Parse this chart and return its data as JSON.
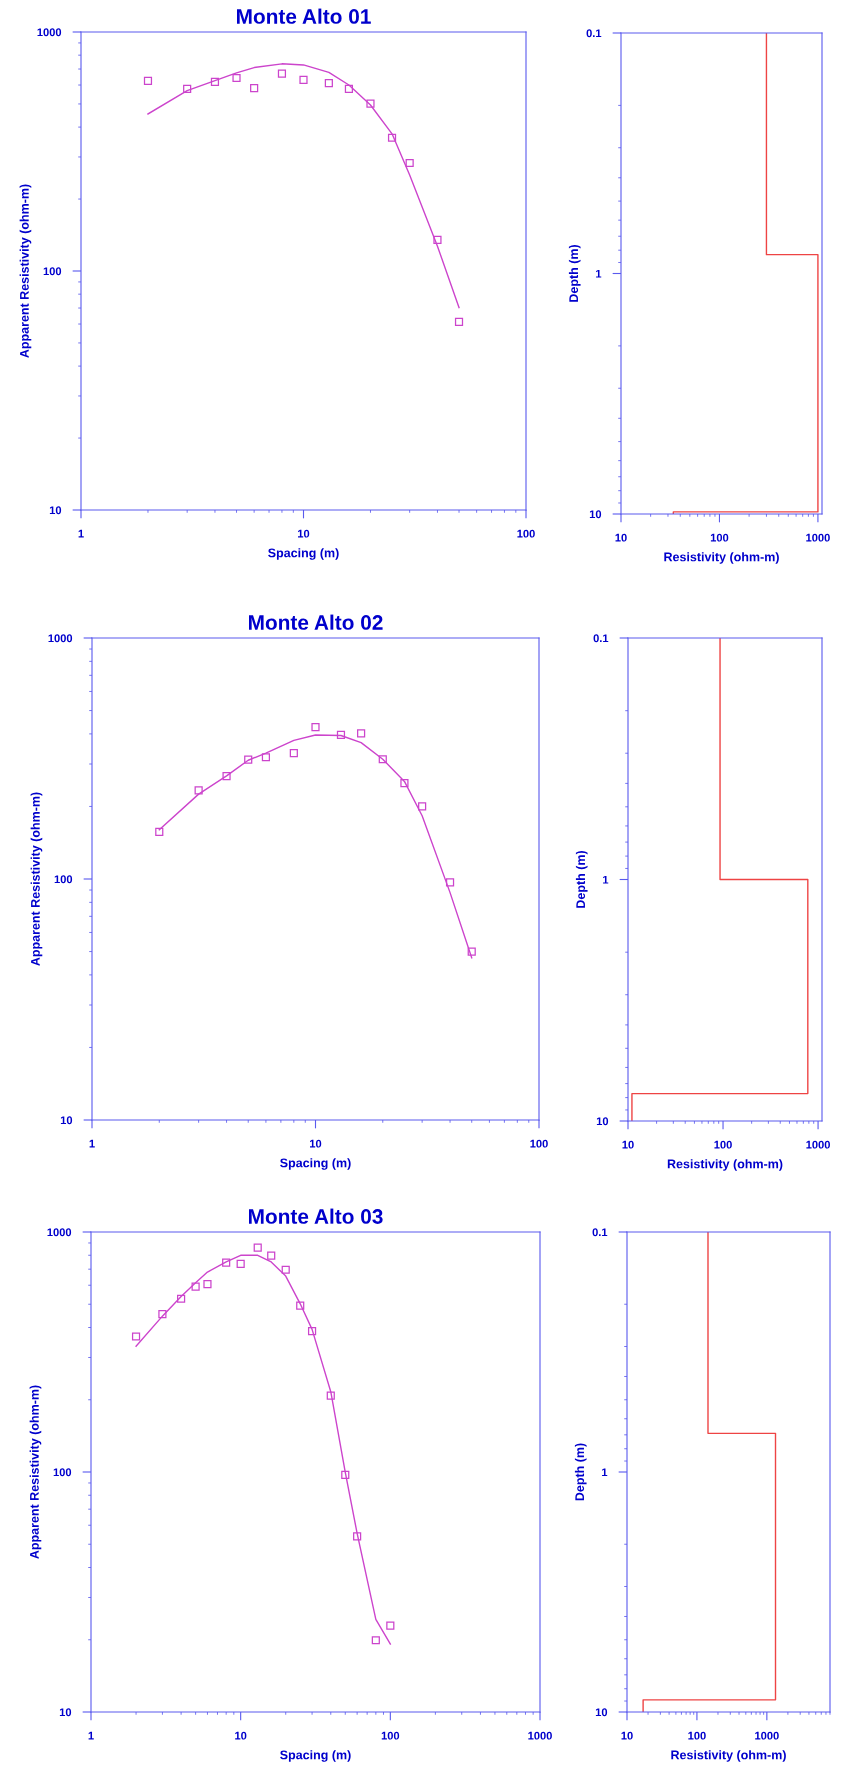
{
  "chart_data": [
    {
      "type": "scatter",
      "title": "Monte Alto 01",
      "xlabel": "Spacing (m)",
      "ylabel": "Apparent Resistivity (ohm-m)",
      "log": "xy",
      "xlim": [
        1,
        100
      ],
      "xticks": [
        1,
        10,
        100
      ],
      "ylim": [
        10,
        1000
      ],
      "yticks": [
        10,
        100,
        1000
      ],
      "x": [
        2,
        3,
        4,
        5,
        6,
        8,
        10,
        13,
        16,
        20,
        25,
        30,
        40,
        50
      ],
      "series": [
        {
          "marker": "square",
          "color": "#cc44cc",
          "values": [
            624,
            578,
            619,
            642,
            582,
            670,
            631,
            611,
            578,
            502,
            361,
            283,
            135,
            61.2
          ]
        },
        {
          "type": "line",
          "marker": "none",
          "line_style": "solid",
          "color": "#cc44cc",
          "values": [
            454,
            568,
            626,
            675,
            710,
            736,
            728,
            678,
            600,
            495,
            375,
            252,
            127,
            70.3
          ]
        }
      ]
    },
    {
      "type": "line",
      "xlabel": "Resistivity (ohm-m)",
      "ylabel": "Depth (m)",
      "log": "xy",
      "xlim": [
        10,
        1100
      ],
      "xticks": [
        10,
        100,
        1000
      ],
      "ylim": [
        10,
        0.1
      ],
      "yticks": [
        0.1,
        1,
        10
      ],
      "series": [
        {
          "marker": "none",
          "line_style": "solid",
          "color": "#ee4444",
          "x": [
            300,
            300,
            1000,
            1000,
            34,
            34
          ],
          "values": [
            0.1,
            0.835,
            0.835,
            9.8,
            9.8,
            10
          ]
        }
      ]
    },
    {
      "type": "scatter",
      "title": "Monte Alto 02",
      "xlabel": "Spacing (m)",
      "ylabel": "Apparent Resistivity (ohm-m)",
      "log": "xy",
      "xlim": [
        1,
        100
      ],
      "xticks": [
        1,
        10,
        100
      ],
      "ylim": [
        10,
        1000
      ],
      "yticks": [
        10,
        100,
        1000
      ],
      "x": [
        2,
        3,
        4,
        5,
        6,
        8,
        10,
        13,
        16,
        20,
        25,
        30,
        40,
        50
      ],
      "series": [
        {
          "marker": "square",
          "color": "#cc44cc",
          "values": [
            157,
            233,
            267,
            313,
            320,
            333,
            427,
            396,
            402,
            314,
            250,
            200,
            96.9,
            50
          ]
        },
        {
          "type": "line",
          "marker": "none",
          "line_style": "solid",
          "color": "#cc44cc",
          "values": [
            160,
            225,
            268,
            311,
            333,
            376,
            396,
            394,
            368,
            314,
            254,
            183,
            87.8,
            47.1
          ]
        }
      ]
    },
    {
      "type": "line",
      "xlabel": "Resistivity (ohm-m)",
      "ylabel": "Depth (m)",
      "log": "xy",
      "xlim": [
        10,
        1100
      ],
      "xticks": [
        10,
        100,
        1000
      ],
      "ylim": [
        10,
        0.1
      ],
      "yticks": [
        0.1,
        1,
        10
      ],
      "series": [
        {
          "marker": "none",
          "line_style": "solid",
          "color": "#ee4444",
          "x": [
            93,
            93,
            780,
            780,
            11,
            11
          ],
          "values": [
            0.1,
            1.0,
            1.0,
            7.7,
            7.7,
            10
          ]
        }
      ]
    },
    {
      "type": "scatter",
      "title": "Monte Alto 03",
      "xlabel": "Spacing (m)",
      "ylabel": "Apparent Resistivity (ohm-m)",
      "log": "xy",
      "xlim": [
        1,
        1000
      ],
      "xticks": [
        1,
        10,
        100,
        1000
      ],
      "ylim": [
        10,
        1000
      ],
      "yticks": [
        10,
        100,
        1000
      ],
      "x": [
        2,
        3,
        4,
        5,
        6,
        8,
        10,
        13,
        16,
        20,
        25,
        30,
        40,
        50,
        60,
        80,
        100
      ],
      "series": [
        {
          "marker": "square",
          "color": "#cc44cc",
          "values": [
            367,
            455,
            527,
            592,
            607,
            745,
            737,
            860,
            797,
            696,
            493,
            386,
            208,
            97.2,
            53.9,
            19.9,
            22.9
          ]
        },
        {
          "type": "line",
          "marker": "none",
          "line_style": "solid",
          "color": "#cc44cc",
          "values": [
            334,
            446,
            539,
            615,
            681,
            750,
            800,
            800,
            750,
            655,
            502,
            393,
            216,
            99.6,
            55.5,
            24.3,
            19.2
          ]
        }
      ]
    },
    {
      "type": "line",
      "xlabel": "Resistivity (ohm-m)",
      "ylabel": "Depth (m)",
      "log": "xy",
      "xlim": [
        10,
        8000
      ],
      "xticks": [
        10,
        100,
        1000
      ],
      "ylim": [
        10,
        0.1
      ],
      "yticks": [
        0.1,
        1,
        10
      ],
      "series": [
        {
          "marker": "none",
          "line_style": "solid",
          "color": "#ee4444",
          "x": [
            144,
            144,
            1330,
            1330,
            17,
            17
          ],
          "values": [
            0.1,
            0.69,
            0.69,
            8.9,
            8.9,
            10
          ]
        }
      ]
    }
  ]
}
